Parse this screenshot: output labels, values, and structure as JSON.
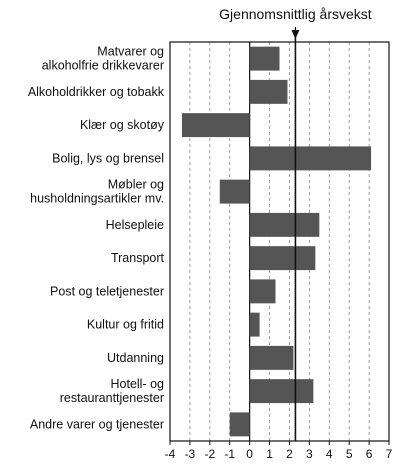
{
  "chart_data": {
    "type": "bar",
    "orientation": "horizontal",
    "categories": [
      [
        "Matvarer og",
        "alkoholfrie drikkevarer"
      ],
      [
        "Alkoholdrikker og tobakk"
      ],
      [
        "Klær og skotøy"
      ],
      [
        "Bolig, lys og brensel"
      ],
      [
        "Møbler og",
        "husholdningsartikler mv."
      ],
      [
        "Helsepleie"
      ],
      [
        "Transport"
      ],
      [
        "Post og teletjenester"
      ],
      [
        "Kultur og fritid"
      ],
      [
        "Utdanning"
      ],
      [
        "Hotell- og",
        "restauranttjenester"
      ],
      [
        "Andre varer og tjenester"
      ]
    ],
    "values": [
      1.5,
      1.9,
      -3.4,
      6.1,
      -1.5,
      3.5,
      3.3,
      1.3,
      0.5,
      2.2,
      3.2,
      -1.0
    ],
    "xlim": [
      -4,
      7
    ],
    "xticks": [
      -4,
      -3,
      -2,
      -1,
      0,
      1,
      2,
      3,
      4,
      5,
      6,
      7
    ],
    "xgrid": "dashed-vertical",
    "reference_line": {
      "value": 2.3,
      "label": "Gjennomsnittlig årsvekst"
    },
    "bar_color": "#555555",
    "title": "",
    "xlabel": "",
    "ylabel": ""
  }
}
